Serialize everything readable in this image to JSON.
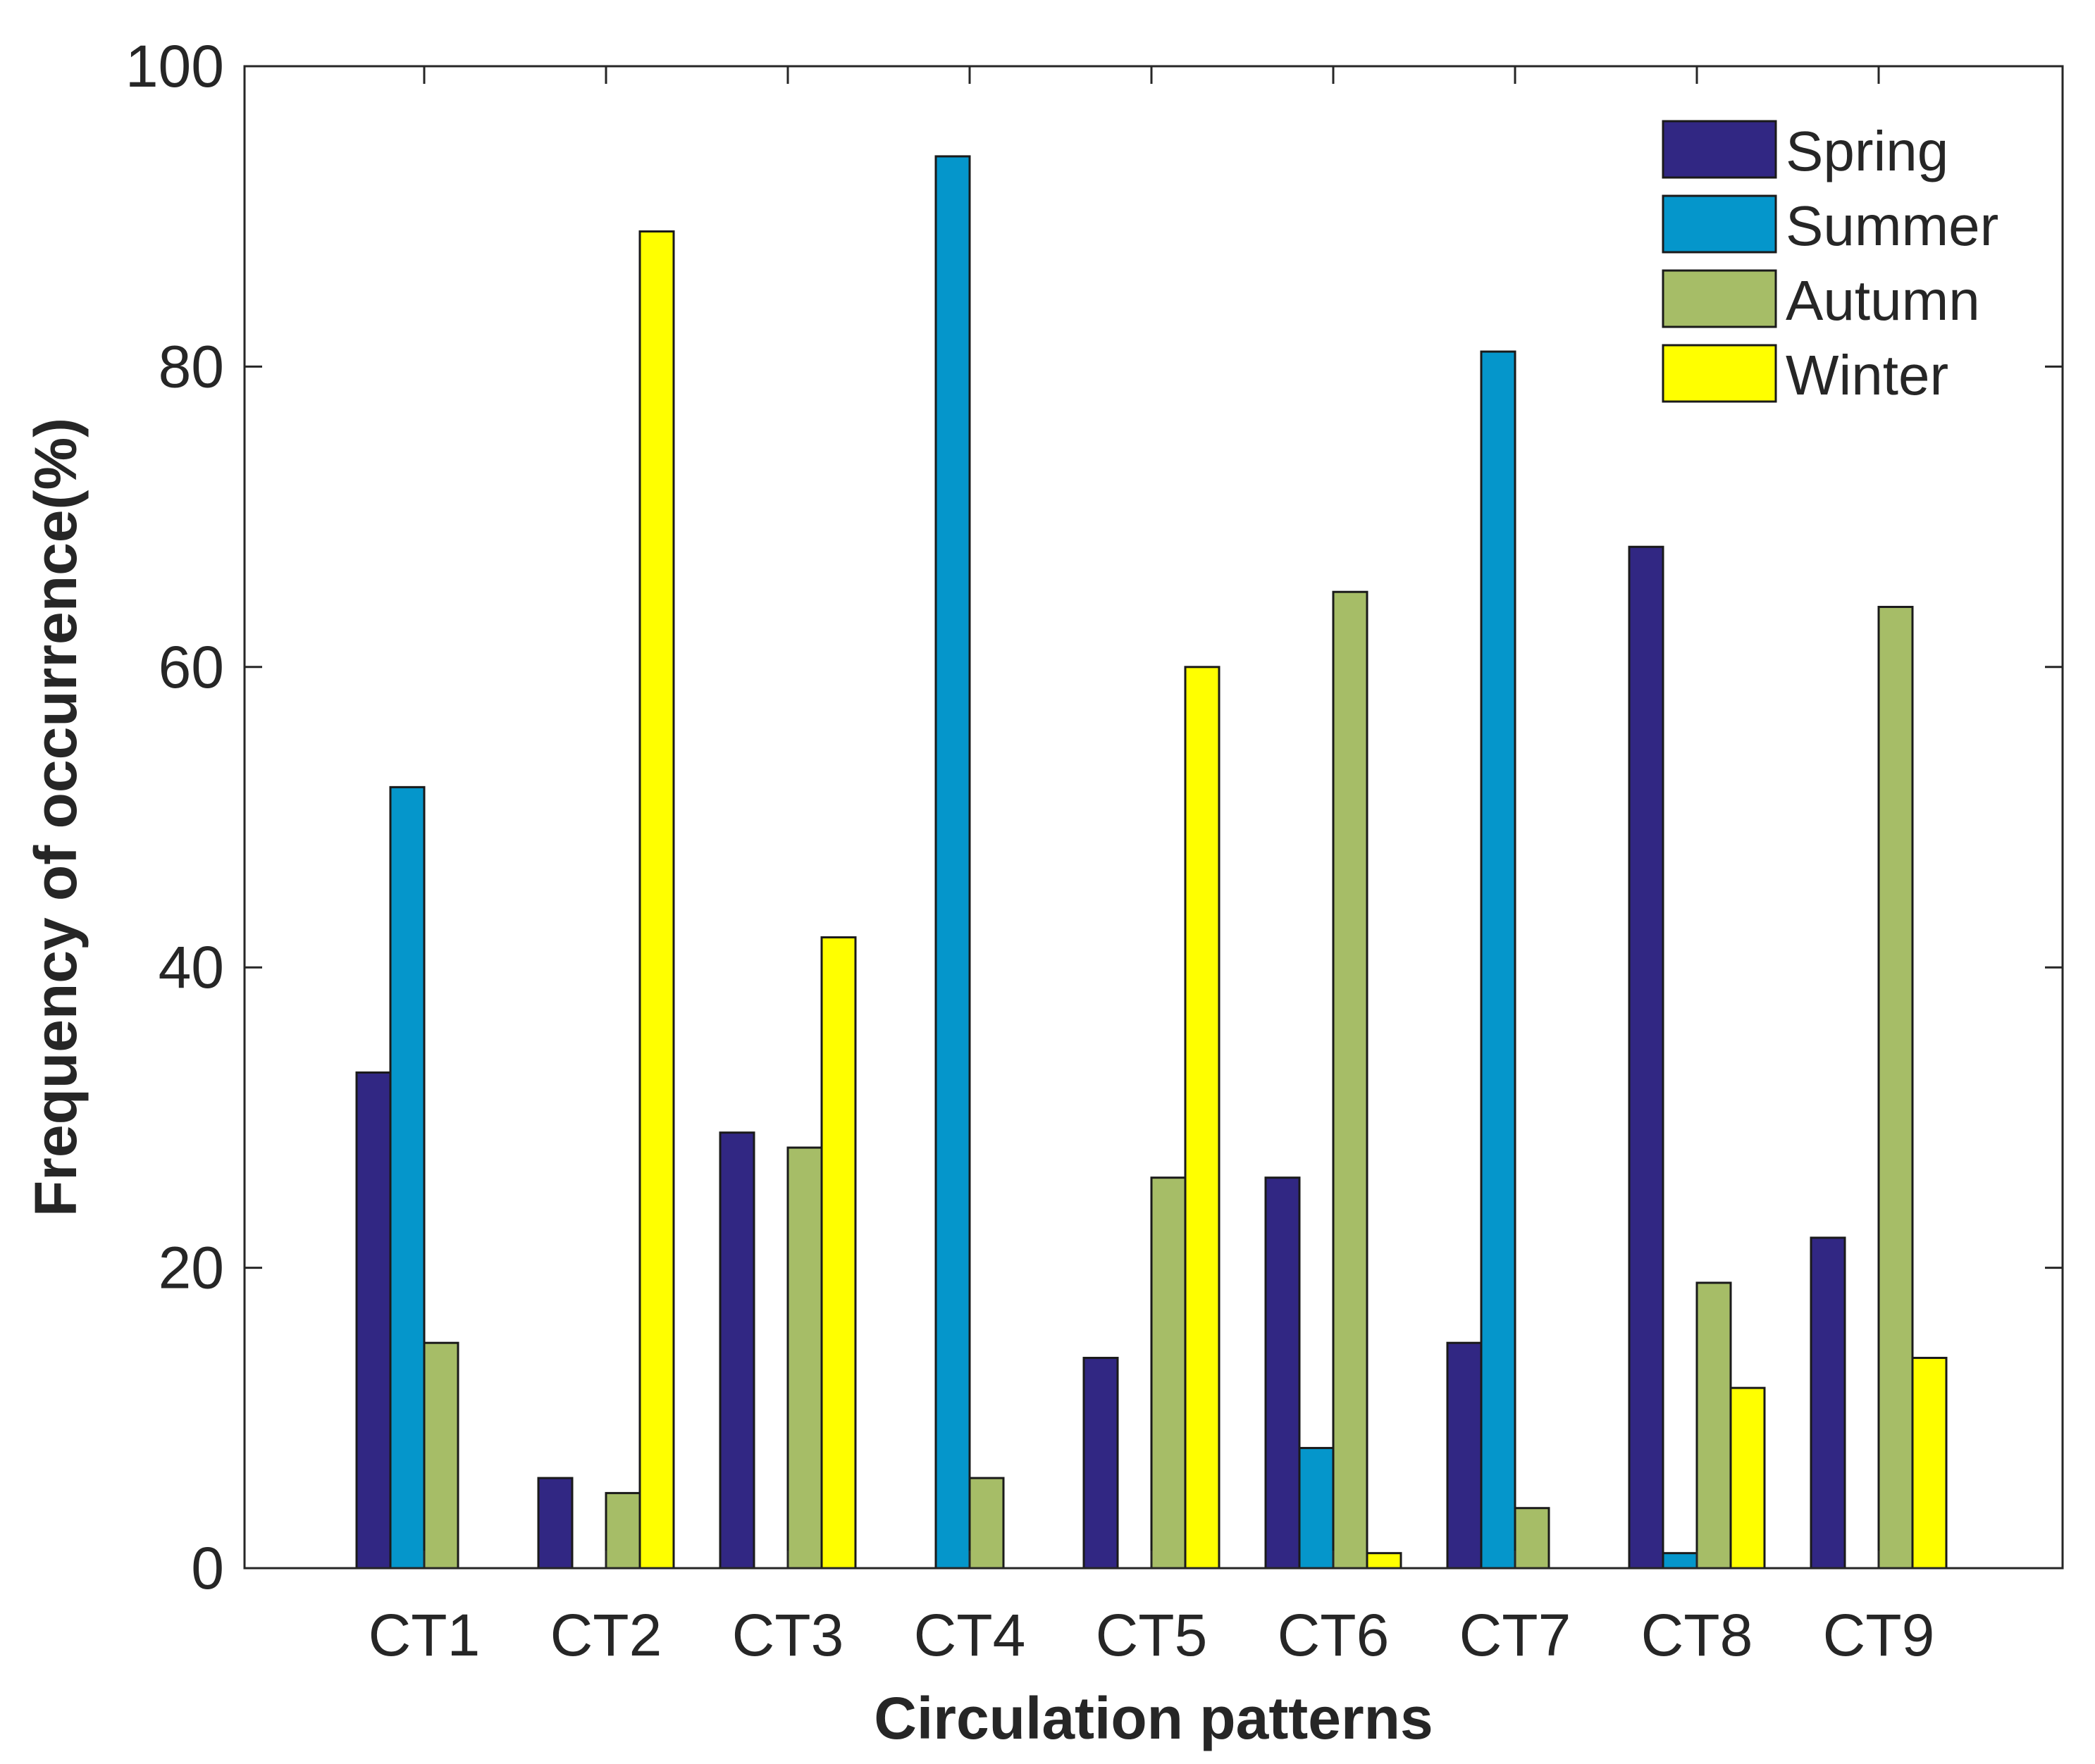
{
  "chart_data": {
    "type": "bar",
    "title": "",
    "xlabel": "Circulation patterns",
    "ylabel": "Frequency of occurrence(%)",
    "ylim": [
      0,
      100
    ],
    "yticks": [
      "0",
      "20",
      "40",
      "60",
      "80",
      "100"
    ],
    "categories": [
      "CT1",
      "CT2",
      "CT3",
      "CT4",
      "CT5",
      "CT6",
      "CT7",
      "CT8",
      "CT9"
    ],
    "series": [
      {
        "name": "Spring",
        "color": "#312783",
        "values": [
          33,
          6,
          29,
          0,
          14,
          26,
          15,
          68,
          22
        ]
      },
      {
        "name": "Summer",
        "color": "#0596CB",
        "values": [
          52,
          0,
          0,
          94,
          0,
          8,
          81,
          1,
          0
        ]
      },
      {
        "name": "Autumn",
        "color": "#A6BD67",
        "values": [
          15,
          5,
          28,
          6,
          26,
          65,
          4,
          19,
          64
        ]
      },
      {
        "name": "Winter",
        "color": "#FFFF00",
        "values": [
          0,
          89,
          42,
          0,
          60,
          1,
          0,
          12,
          14
        ]
      }
    ],
    "legend": "top-right",
    "grid": false
  }
}
